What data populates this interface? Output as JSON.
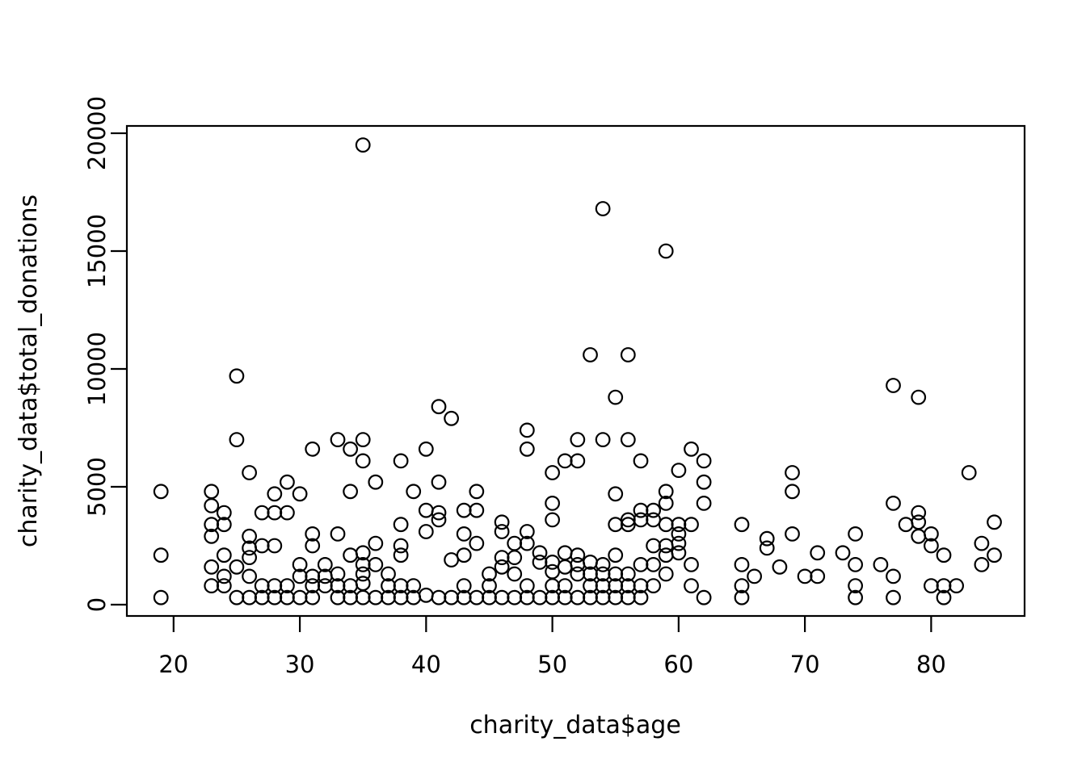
{
  "chart_data": {
    "type": "scatter",
    "title": "",
    "xlabel": "charity_data$age",
    "ylabel": "charity_data$total_donations",
    "x_ticks": [
      20,
      30,
      40,
      50,
      60,
      70,
      80
    ],
    "y_ticks": [
      0,
      5000,
      10000,
      15000,
      20000
    ],
    "xlim": [
      16.3,
      87.4
    ],
    "ylim": [
      -480,
      20310
    ],
    "grid": false,
    "legend": "none",
    "marker": {
      "shape": "open-circle",
      "color": "#000000",
      "radius_px": 8.3,
      "stroke_px": 2.2
    },
    "points": [
      [
        19,
        4800
      ],
      [
        19,
        2100
      ],
      [
        19,
        300
      ],
      [
        23,
        4800
      ],
      [
        23,
        4200
      ],
      [
        23,
        3400
      ],
      [
        23,
        2900
      ],
      [
        23,
        1600
      ],
      [
        23,
        800
      ],
      [
        24,
        3900
      ],
      [
        24,
        3400
      ],
      [
        24,
        2100
      ],
      [
        24,
        1200
      ],
      [
        24,
        800
      ],
      [
        25,
        9700
      ],
      [
        25,
        7000
      ],
      [
        25,
        1600
      ],
      [
        25,
        300
      ],
      [
        26,
        5600
      ],
      [
        26,
        2900
      ],
      [
        26,
        2400
      ],
      [
        26,
        2000
      ],
      [
        26,
        1200
      ],
      [
        26,
        300
      ],
      [
        27,
        3900
      ],
      [
        27,
        2500
      ],
      [
        27,
        800
      ],
      [
        27,
        300
      ],
      [
        28,
        4700
      ],
      [
        28,
        3900
      ],
      [
        28,
        2500
      ],
      [
        28,
        800
      ],
      [
        28,
        300
      ],
      [
        29,
        5200
      ],
      [
        29,
        3900
      ],
      [
        29,
        800
      ],
      [
        29,
        300
      ],
      [
        30,
        4700
      ],
      [
        30,
        1700
      ],
      [
        30,
        1200
      ],
      [
        30,
        300
      ],
      [
        31,
        6600
      ],
      [
        31,
        3000
      ],
      [
        31,
        2500
      ],
      [
        31,
        1200
      ],
      [
        31,
        800
      ],
      [
        31,
        300
      ],
      [
        32,
        1700
      ],
      [
        32,
        1200
      ],
      [
        32,
        800
      ],
      [
        33,
        7000
      ],
      [
        33,
        3000
      ],
      [
        33,
        1300
      ],
      [
        33,
        800
      ],
      [
        33,
        300
      ],
      [
        34,
        6600
      ],
      [
        34,
        4800
      ],
      [
        34,
        2100
      ],
      [
        34,
        800
      ],
      [
        34,
        300
      ],
      [
        35,
        19500
      ],
      [
        35,
        7000
      ],
      [
        35,
        6100
      ],
      [
        35,
        2200
      ],
      [
        35,
        1700
      ],
      [
        35,
        1300
      ],
      [
        35,
        900
      ],
      [
        35,
        300
      ],
      [
        36,
        5200
      ],
      [
        36,
        2600
      ],
      [
        36,
        1700
      ],
      [
        36,
        300
      ],
      [
        37,
        1300
      ],
      [
        37,
        800
      ],
      [
        37,
        300
      ],
      [
        38,
        6100
      ],
      [
        38,
        3400
      ],
      [
        38,
        2500
      ],
      [
        38,
        2100
      ],
      [
        38,
        800
      ],
      [
        38,
        300
      ],
      [
        39,
        4800
      ],
      [
        39,
        800
      ],
      [
        39,
        300
      ],
      [
        40,
        6600
      ],
      [
        40,
        4000
      ],
      [
        40,
        3100
      ],
      [
        40,
        400
      ],
      [
        41,
        8400
      ],
      [
        41,
        5200
      ],
      [
        41,
        3900
      ],
      [
        41,
        3600
      ],
      [
        41,
        300
      ],
      [
        42,
        7900
      ],
      [
        42,
        1900
      ],
      [
        42,
        300
      ],
      [
        43,
        4000
      ],
      [
        43,
        3000
      ],
      [
        43,
        2100
      ],
      [
        43,
        800
      ],
      [
        43,
        300
      ],
      [
        44,
        4800
      ],
      [
        44,
        4000
      ],
      [
        44,
        2600
      ],
      [
        44,
        300
      ],
      [
        45,
        1300
      ],
      [
        45,
        800
      ],
      [
        45,
        300
      ],
      [
        46,
        3500
      ],
      [
        46,
        3100
      ],
      [
        46,
        2000
      ],
      [
        46,
        1600
      ],
      [
        46,
        300
      ],
      [
        47,
        2600
      ],
      [
        47,
        2000
      ],
      [
        47,
        1300
      ],
      [
        47,
        300
      ],
      [
        48,
        7400
      ],
      [
        48,
        6600
      ],
      [
        48,
        3100
      ],
      [
        48,
        2600
      ],
      [
        48,
        800
      ],
      [
        48,
        300
      ],
      [
        49,
        2200
      ],
      [
        49,
        1800
      ],
      [
        49,
        300
      ],
      [
        50,
        5600
      ],
      [
        50,
        4300
      ],
      [
        50,
        3600
      ],
      [
        50,
        1800
      ],
      [
        50,
        1400
      ],
      [
        50,
        800
      ],
      [
        50,
        300
      ],
      [
        51,
        6100
      ],
      [
        51,
        2200
      ],
      [
        51,
        1600
      ],
      [
        51,
        800
      ],
      [
        51,
        300
      ],
      [
        52,
        7000
      ],
      [
        52,
        6100
      ],
      [
        52,
        2100
      ],
      [
        52,
        1700
      ],
      [
        52,
        1300
      ],
      [
        52,
        300
      ],
      [
        53,
        10600
      ],
      [
        53,
        1800
      ],
      [
        53,
        1300
      ],
      [
        53,
        800
      ],
      [
        53,
        300
      ],
      [
        54,
        16800
      ],
      [
        54,
        7000
      ],
      [
        54,
        1700
      ],
      [
        54,
        1300
      ],
      [
        54,
        800
      ],
      [
        54,
        300
      ],
      [
        55,
        8800
      ],
      [
        55,
        4700
      ],
      [
        55,
        3400
      ],
      [
        55,
        2100
      ],
      [
        55,
        1300
      ],
      [
        55,
        800
      ],
      [
        55,
        300
      ],
      [
        56,
        10600
      ],
      [
        56,
        7000
      ],
      [
        56,
        3600
      ],
      [
        56,
        3400
      ],
      [
        56,
        1300
      ],
      [
        56,
        800
      ],
      [
        56,
        300
      ],
      [
        57,
        6100
      ],
      [
        57,
        4000
      ],
      [
        57,
        3600
      ],
      [
        57,
        1700
      ],
      [
        57,
        800
      ],
      [
        57,
        300
      ],
      [
        58,
        4000
      ],
      [
        58,
        3600
      ],
      [
        58,
        2500
      ],
      [
        58,
        1700
      ],
      [
        58,
        800
      ],
      [
        59,
        15000
      ],
      [
        59,
        4800
      ],
      [
        59,
        4300
      ],
      [
        59,
        3400
      ],
      [
        59,
        2500
      ],
      [
        59,
        2100
      ],
      [
        59,
        1300
      ],
      [
        60,
        5700
      ],
      [
        60,
        3400
      ],
      [
        60,
        3000
      ],
      [
        60,
        2600
      ],
      [
        60,
        2200
      ],
      [
        61,
        6600
      ],
      [
        61,
        3400
      ],
      [
        61,
        1700
      ],
      [
        61,
        800
      ],
      [
        62,
        6100
      ],
      [
        62,
        5200
      ],
      [
        62,
        4300
      ],
      [
        62,
        300
      ],
      [
        65,
        3400
      ],
      [
        65,
        1700
      ],
      [
        65,
        800
      ],
      [
        65,
        300
      ],
      [
        66,
        1200
      ],
      [
        67,
        2800
      ],
      [
        67,
        2400
      ],
      [
        68,
        1600
      ],
      [
        69,
        5600
      ],
      [
        69,
        4800
      ],
      [
        69,
        3000
      ],
      [
        70,
        1200
      ],
      [
        71,
        2200
      ],
      [
        71,
        1200
      ],
      [
        73,
        2200
      ],
      [
        74,
        3000
      ],
      [
        74,
        1700
      ],
      [
        74,
        800
      ],
      [
        74,
        300
      ],
      [
        76,
        1700
      ],
      [
        77,
        9300
      ],
      [
        77,
        4300
      ],
      [
        77,
        1200
      ],
      [
        77,
        300
      ],
      [
        78,
        3400
      ],
      [
        79,
        8800
      ],
      [
        79,
        3900
      ],
      [
        79,
        3500
      ],
      [
        79,
        2900
      ],
      [
        80,
        3000
      ],
      [
        80,
        2500
      ],
      [
        80,
        800
      ],
      [
        81,
        2100
      ],
      [
        81,
        800
      ],
      [
        81,
        300
      ],
      [
        82,
        800
      ],
      [
        83,
        5600
      ],
      [
        84,
        2600
      ],
      [
        84,
        1700
      ],
      [
        85,
        3500
      ],
      [
        85,
        2100
      ]
    ]
  },
  "colors": {
    "background": "#ffffff",
    "foreground": "#000000"
  }
}
